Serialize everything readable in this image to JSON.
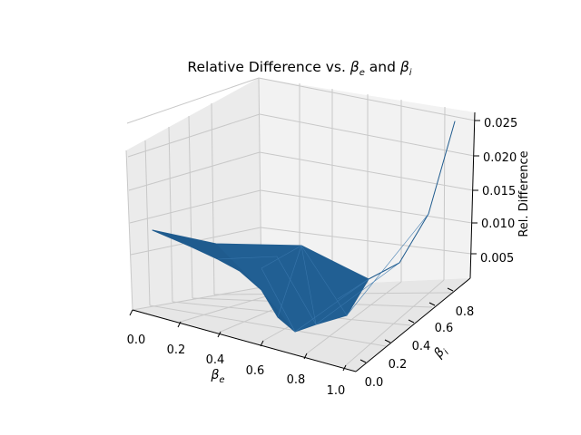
{
  "chart_data": {
    "type": "surface3d",
    "title_parts": [
      "Relative Difference vs. ",
      "β",
      "e",
      " and ",
      "β",
      "i"
    ],
    "xlabel": {
      "symbol": "β",
      "sub": "e"
    },
    "ylabel": {
      "symbol": "β",
      "sub": "i"
    },
    "zlabel": "Rel. Difference",
    "xticks": [
      "0.0",
      "0.2",
      "0.4",
      "0.6",
      "0.8",
      "1.0"
    ],
    "yticks": [
      "0.0",
      "0.2",
      "0.4",
      "0.6",
      "0.8"
    ],
    "zticks": [
      "0.005",
      "0.010",
      "0.015",
      "0.020",
      "0.025"
    ],
    "surface_color": "#1f5b8e",
    "grid": true,
    "surface_corners": [
      {
        "be": 0.0,
        "bi": 0.0,
        "rel_difference": 0.0075
      },
      {
        "be": 1.0,
        "bi": 0.0,
        "rel_difference": 0.0055
      },
      {
        "be": 0.0,
        "bi": 1.0,
        "rel_difference": 0.0012
      },
      {
        "be": 1.0,
        "bi": 1.0,
        "rel_difference": 0.025
      }
    ]
  }
}
